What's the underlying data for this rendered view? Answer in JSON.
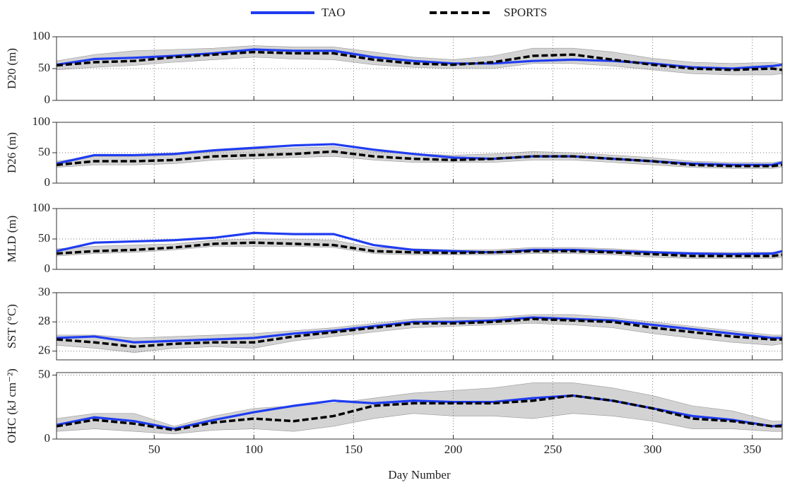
{
  "chart_data": [
    {
      "type": "line",
      "ylabel": "D20 (m)",
      "ylim": [
        0,
        100
      ],
      "yticks": [
        0,
        50,
        100
      ],
      "xlim": [
        1,
        365
      ],
      "xticks": [
        50,
        100,
        150,
        200,
        250,
        300,
        350
      ],
      "grid": true,
      "x": [
        1,
        20,
        40,
        60,
        80,
        100,
        120,
        140,
        160,
        180,
        200,
        220,
        240,
        260,
        280,
        300,
        320,
        340,
        360,
        365
      ],
      "band": {
        "color": "#d3d3d3",
        "lower": [
          48,
          52,
          55,
          60,
          64,
          68,
          65,
          64,
          56,
          52,
          50,
          50,
          58,
          58,
          54,
          48,
          42,
          40,
          40,
          42
        ],
        "upper": [
          62,
          72,
          78,
          80,
          82,
          86,
          84,
          84,
          76,
          68,
          64,
          70,
          82,
          82,
          76,
          66,
          60,
          58,
          60,
          58
        ]
      },
      "series": [
        {
          "name": "TAO",
          "color": "#1f3cf0",
          "style": "solid",
          "values": [
            56,
            65,
            67,
            70,
            74,
            80,
            78,
            78,
            68,
            62,
            58,
            58,
            62,
            64,
            62,
            58,
            52,
            50,
            54,
            56
          ]
        },
        {
          "name": "SPORTS",
          "color": "#000000",
          "style": "dashed",
          "values": [
            55,
            60,
            62,
            68,
            72,
            76,
            74,
            74,
            64,
            58,
            56,
            60,
            70,
            72,
            64,
            56,
            50,
            48,
            50,
            48
          ]
        }
      ]
    },
    {
      "type": "line",
      "ylabel": "D26 (m)",
      "ylim": [
        0,
        100
      ],
      "yticks": [
        0,
        50,
        100
      ],
      "xlim": [
        1,
        365
      ],
      "xticks": [
        50,
        100,
        150,
        200,
        250,
        300,
        350
      ],
      "grid": true,
      "x": [
        1,
        20,
        40,
        60,
        80,
        100,
        120,
        140,
        160,
        180,
        200,
        220,
        240,
        260,
        280,
        300,
        320,
        340,
        360,
        365
      ],
      "band": {
        "color": "#d3d3d3",
        "lower": [
          26,
          30,
          30,
          32,
          38,
          40,
          42,
          44,
          38,
          34,
          34,
          34,
          38,
          38,
          34,
          30,
          26,
          24,
          24,
          26
        ],
        "upper": [
          36,
          44,
          44,
          46,
          52,
          56,
          58,
          60,
          52,
          48,
          46,
          48,
          52,
          50,
          46,
          42,
          36,
          34,
          34,
          36
        ]
      },
      "series": [
        {
          "name": "TAO",
          "color": "#1f3cf0",
          "style": "solid",
          "values": [
            32,
            46,
            46,
            48,
            54,
            58,
            62,
            64,
            55,
            48,
            42,
            40,
            44,
            44,
            40,
            36,
            32,
            30,
            30,
            34
          ]
        },
        {
          "name": "SPORTS",
          "color": "#000000",
          "style": "dashed",
          "values": [
            30,
            36,
            36,
            38,
            44,
            46,
            48,
            52,
            44,
            40,
            38,
            40,
            44,
            44,
            40,
            36,
            30,
            28,
            28,
            30
          ]
        }
      ]
    },
    {
      "type": "line",
      "ylabel": "MLD (m)",
      "ylim": [
        0,
        100
      ],
      "yticks": [
        0,
        50,
        100
      ],
      "xlim": [
        1,
        365
      ],
      "xticks": [
        50,
        100,
        150,
        200,
        250,
        300,
        350
      ],
      "grid": true,
      "x": [
        1,
        20,
        40,
        60,
        80,
        100,
        120,
        140,
        160,
        180,
        200,
        220,
        240,
        260,
        280,
        300,
        320,
        340,
        360,
        365
      ],
      "band": {
        "color": "#d3d3d3",
        "lower": [
          22,
          26,
          28,
          32,
          38,
          38,
          38,
          36,
          26,
          24,
          24,
          24,
          26,
          26,
          24,
          20,
          18,
          18,
          18,
          20
        ],
        "upper": [
          34,
          38,
          40,
          42,
          48,
          50,
          50,
          48,
          36,
          34,
          32,
          32,
          36,
          36,
          34,
          30,
          28,
          28,
          28,
          30
        ]
      },
      "series": [
        {
          "name": "TAO",
          "color": "#1f3cf0",
          "style": "solid",
          "values": [
            30,
            44,
            46,
            48,
            52,
            60,
            58,
            58,
            40,
            32,
            30,
            28,
            32,
            32,
            30,
            28,
            26,
            25,
            26,
            30
          ]
        },
        {
          "name": "SPORTS",
          "color": "#000000",
          "style": "dashed",
          "values": [
            26,
            30,
            32,
            36,
            42,
            44,
            42,
            40,
            30,
            28,
            27,
            28,
            30,
            30,
            28,
            25,
            22,
            22,
            22,
            24
          ]
        }
      ]
    },
    {
      "type": "line",
      "ylabel": "SST (°C)",
      "ylim": [
        25.4,
        30
      ],
      "yticks": [
        26,
        28,
        30
      ],
      "xlim": [
        1,
        365
      ],
      "xticks": [
        50,
        100,
        150,
        200,
        250,
        300,
        350
      ],
      "grid": true,
      "x": [
        1,
        20,
        40,
        60,
        80,
        100,
        120,
        140,
        160,
        180,
        200,
        220,
        240,
        260,
        280,
        300,
        320,
        340,
        360,
        365
      ],
      "band": {
        "color": "#d3d3d3",
        "lower": [
          26.4,
          26.2,
          25.9,
          26.2,
          26.3,
          26.2,
          26.7,
          27.0,
          27.3,
          27.6,
          27.7,
          27.8,
          27.9,
          27.8,
          27.6,
          27.2,
          26.9,
          26.6,
          26.4,
          26.5
        ],
        "upper": [
          27.1,
          27.1,
          26.9,
          27.0,
          27.1,
          27.2,
          27.4,
          27.6,
          27.9,
          28.2,
          28.3,
          28.3,
          28.5,
          28.5,
          28.3,
          28.0,
          27.7,
          27.4,
          27.1,
          27.1
        ]
      },
      "series": [
        {
          "name": "TAO",
          "color": "#1f3cf0",
          "style": "solid",
          "values": [
            26.9,
            27.0,
            26.6,
            26.7,
            26.8,
            26.9,
            27.2,
            27.4,
            27.7,
            28.0,
            28.0,
            28.1,
            28.3,
            28.2,
            28.1,
            27.8,
            27.5,
            27.2,
            26.9,
            26.9
          ]
        },
        {
          "name": "SPORTS",
          "color": "#000000",
          "style": "dashed",
          "values": [
            26.8,
            26.6,
            26.3,
            26.5,
            26.6,
            26.6,
            27.0,
            27.3,
            27.6,
            27.9,
            27.9,
            28.0,
            28.2,
            28.1,
            28.0,
            27.6,
            27.3,
            27.0,
            26.8,
            26.8
          ]
        }
      ]
    },
    {
      "type": "line",
      "ylabel": "OHC (kJ cm⁻²)",
      "xlabel": "Day Number",
      "ylim": [
        0,
        52
      ],
      "yticks": [
        0,
        50
      ],
      "xlim": [
        1,
        365
      ],
      "xticks": [
        50,
        100,
        150,
        200,
        250,
        300,
        350
      ],
      "grid": true,
      "x": [
        1,
        20,
        40,
        60,
        80,
        100,
        120,
        140,
        160,
        180,
        200,
        220,
        240,
        260,
        280,
        300,
        320,
        340,
        360,
        365
      ],
      "band": {
        "color": "#d3d3d3",
        "lower": [
          6,
          8,
          6,
          4,
          7,
          8,
          6,
          10,
          16,
          20,
          18,
          18,
          16,
          20,
          18,
          14,
          8,
          8,
          6,
          6
        ],
        "upper": [
          16,
          20,
          20,
          10,
          18,
          24,
          26,
          28,
          32,
          36,
          38,
          40,
          44,
          44,
          40,
          34,
          26,
          22,
          14,
          14
        ]
      },
      "series": [
        {
          "name": "TAO",
          "color": "#1f3cf0",
          "style": "solid",
          "values": [
            11,
            17,
            14,
            8,
            15,
            21,
            26,
            30,
            28,
            30,
            29,
            29,
            32,
            34,
            30,
            24,
            18,
            15,
            10,
            11
          ]
        },
        {
          "name": "SPORTS",
          "color": "#000000",
          "style": "dashed",
          "values": [
            10,
            15,
            12,
            7,
            13,
            16,
            14,
            18,
            26,
            28,
            28,
            28,
            30,
            34,
            30,
            24,
            16,
            14,
            10,
            10
          ]
        }
      ]
    }
  ]
}
